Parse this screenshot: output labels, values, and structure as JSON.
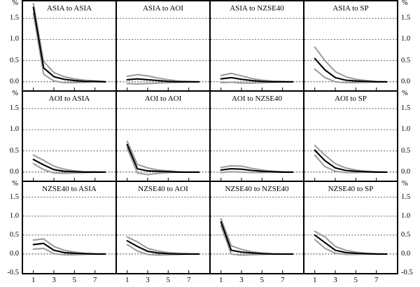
{
  "figure": {
    "unit_label": "%",
    "colors": {
      "response": "#000000",
      "band": "#9e9e9e",
      "grid": "#444444"
    }
  },
  "axis": {
    "x_ticks": [
      1,
      3,
      5,
      7
    ],
    "x_domain": [
      0,
      9
    ],
    "rows": [
      {
        "ylim": [
          -0.2,
          1.9
        ],
        "yticks": [
          0.0,
          0.5,
          1.0,
          1.5
        ]
      },
      {
        "ylim": [
          -0.2,
          1.9
        ],
        "yticks": [
          0.0,
          0.5,
          1.0,
          1.5
        ]
      },
      {
        "ylim": [
          -0.5,
          1.9
        ],
        "yticks": [
          -0.5,
          0.0,
          0.5,
          1.0,
          1.5
        ]
      }
    ]
  },
  "chart_data": [
    {
      "type": "line",
      "title": "ASIA to ASIA",
      "row": 0,
      "col": 0,
      "x": [
        1,
        2,
        3,
        4,
        5,
        6,
        7,
        8
      ],
      "series": [
        {
          "name": "upper_band",
          "values": [
            1.85,
            0.48,
            0.22,
            0.12,
            0.07,
            0.04,
            0.02,
            0.01
          ]
        },
        {
          "name": "response",
          "values": [
            1.76,
            0.33,
            0.12,
            0.06,
            0.03,
            0.01,
            0.01,
            0.0
          ]
        },
        {
          "name": "lower_band",
          "values": [
            1.62,
            0.18,
            0.02,
            -0.02,
            -0.02,
            -0.01,
            0.0,
            0.0
          ]
        }
      ]
    },
    {
      "type": "line",
      "title": "ASIA to AOI",
      "row": 0,
      "col": 1,
      "x": [
        1,
        2,
        3,
        4,
        5,
        6,
        7,
        8
      ],
      "series": [
        {
          "name": "upper_band",
          "values": [
            0.13,
            0.17,
            0.14,
            0.09,
            0.05,
            0.02,
            0.01,
            0.0
          ]
        },
        {
          "name": "response",
          "values": [
            0.05,
            0.07,
            0.05,
            0.03,
            0.01,
            0.0,
            0.0,
            0.0
          ]
        },
        {
          "name": "lower_band",
          "values": [
            -0.04,
            -0.05,
            -0.04,
            -0.03,
            -0.02,
            -0.01,
            0.0,
            0.0
          ]
        }
      ]
    },
    {
      "type": "line",
      "title": "ASIA to NZSE40",
      "row": 0,
      "col": 2,
      "x": [
        1,
        2,
        3,
        4,
        5,
        6,
        7,
        8
      ],
      "series": [
        {
          "name": "upper_band",
          "values": [
            0.15,
            0.2,
            0.14,
            0.08,
            0.04,
            0.02,
            0.01,
            0.0
          ]
        },
        {
          "name": "response",
          "values": [
            0.07,
            0.1,
            0.06,
            0.03,
            0.01,
            0.0,
            0.0,
            0.0
          ]
        },
        {
          "name": "lower_band",
          "values": [
            -0.02,
            -0.01,
            -0.03,
            -0.03,
            -0.02,
            -0.01,
            0.0,
            0.0
          ]
        }
      ]
    },
    {
      "type": "line",
      "title": "ASIA to SP",
      "row": 0,
      "col": 3,
      "x": [
        1,
        2,
        3,
        4,
        5,
        6,
        7,
        8
      ],
      "series": [
        {
          "name": "upper_band",
          "values": [
            0.82,
            0.5,
            0.24,
            0.12,
            0.06,
            0.03,
            0.01,
            0.0
          ]
        },
        {
          "name": "response",
          "values": [
            0.55,
            0.28,
            0.1,
            0.04,
            0.02,
            0.01,
            0.0,
            0.0
          ]
        },
        {
          "name": "lower_band",
          "values": [
            0.3,
            0.1,
            0.0,
            -0.02,
            -0.02,
            -0.01,
            0.0,
            0.0
          ]
        }
      ]
    },
    {
      "type": "line",
      "title": "AOI to ASIA",
      "row": 1,
      "col": 0,
      "x": [
        1,
        2,
        3,
        4,
        5,
        6,
        7,
        8
      ],
      "series": [
        {
          "name": "upper_band",
          "values": [
            0.4,
            0.28,
            0.14,
            0.07,
            0.03,
            0.01,
            0.01,
            0.0
          ]
        },
        {
          "name": "response",
          "values": [
            0.3,
            0.17,
            0.06,
            0.02,
            0.01,
            0.0,
            0.0,
            0.0
          ]
        },
        {
          "name": "lower_band",
          "values": [
            0.2,
            0.06,
            -0.02,
            -0.03,
            -0.02,
            -0.01,
            0.0,
            0.0
          ]
        }
      ]
    },
    {
      "type": "line",
      "title": "AOI to AOI",
      "row": 1,
      "col": 1,
      "x": [
        1,
        2,
        3,
        4,
        5,
        6,
        7,
        8
      ],
      "series": [
        {
          "name": "upper_band",
          "values": [
            0.73,
            0.18,
            0.1,
            0.05,
            0.03,
            0.01,
            0.0,
            0.0
          ]
        },
        {
          "name": "response",
          "values": [
            0.65,
            0.08,
            0.03,
            0.02,
            0.01,
            0.0,
            0.0,
            0.0
          ]
        },
        {
          "name": "lower_band",
          "values": [
            0.57,
            -0.02,
            -0.06,
            -0.03,
            -0.01,
            0.0,
            0.0,
            0.0
          ]
        }
      ]
    },
    {
      "type": "line",
      "title": "AOI to NZSE40",
      "row": 1,
      "col": 2,
      "x": [
        1,
        2,
        3,
        4,
        5,
        6,
        7,
        8
      ],
      "series": [
        {
          "name": "upper_band",
          "values": [
            0.11,
            0.15,
            0.14,
            0.09,
            0.05,
            0.02,
            0.01,
            0.0
          ]
        },
        {
          "name": "response",
          "values": [
            0.05,
            0.08,
            0.07,
            0.04,
            0.02,
            0.01,
            0.0,
            0.0
          ]
        },
        {
          "name": "lower_band",
          "values": [
            -0.01,
            0.01,
            0.0,
            -0.01,
            -0.01,
            0.0,
            0.0,
            0.0
          ]
        }
      ]
    },
    {
      "type": "line",
      "title": "AOI to SP",
      "row": 1,
      "col": 3,
      "x": [
        1,
        2,
        3,
        4,
        5,
        6,
        7,
        8
      ],
      "series": [
        {
          "name": "upper_band",
          "values": [
            0.63,
            0.4,
            0.2,
            0.1,
            0.05,
            0.02,
            0.01,
            0.0
          ]
        },
        {
          "name": "response",
          "values": [
            0.52,
            0.27,
            0.1,
            0.04,
            0.02,
            0.01,
            0.0,
            0.0
          ]
        },
        {
          "name": "lower_band",
          "values": [
            0.4,
            0.13,
            0.02,
            -0.01,
            -0.01,
            0.0,
            0.0,
            0.0
          ]
        }
      ]
    },
    {
      "type": "line",
      "title": "NZSE40 to ASIA",
      "row": 2,
      "col": 0,
      "x": [
        1,
        2,
        3,
        4,
        5,
        6,
        7,
        8
      ],
      "series": [
        {
          "name": "upper_band",
          "values": [
            0.37,
            0.4,
            0.2,
            0.1,
            0.05,
            0.02,
            0.01,
            0.0
          ]
        },
        {
          "name": "response",
          "values": [
            0.25,
            0.28,
            0.1,
            0.04,
            0.02,
            0.01,
            0.0,
            0.0
          ]
        },
        {
          "name": "lower_band",
          "values": [
            0.13,
            0.15,
            0.01,
            -0.02,
            -0.02,
            -0.01,
            0.0,
            0.0
          ]
        }
      ]
    },
    {
      "type": "line",
      "title": "NZSE40 to AOI",
      "row": 2,
      "col": 1,
      "x": [
        1,
        2,
        3,
        4,
        5,
        6,
        7,
        8
      ],
      "series": [
        {
          "name": "upper_band",
          "values": [
            0.45,
            0.32,
            0.15,
            0.08,
            0.04,
            0.02,
            0.01,
            0.0
          ]
        },
        {
          "name": "response",
          "values": [
            0.35,
            0.2,
            0.07,
            0.03,
            0.01,
            0.0,
            0.0,
            0.0
          ]
        },
        {
          "name": "lower_band",
          "values": [
            0.25,
            0.08,
            -0.01,
            -0.03,
            -0.02,
            -0.01,
            0.0,
            0.0
          ]
        }
      ]
    },
    {
      "type": "line",
      "title": "NZSE40 to NZSE40",
      "row": 2,
      "col": 2,
      "x": [
        1,
        2,
        3,
        4,
        5,
        6,
        7,
        8
      ],
      "series": [
        {
          "name": "upper_band",
          "values": [
            0.93,
            0.22,
            0.12,
            0.06,
            0.03,
            0.01,
            0.0,
            0.0
          ]
        },
        {
          "name": "response",
          "values": [
            0.85,
            0.1,
            0.05,
            0.03,
            0.01,
            0.0,
            0.0,
            0.0
          ]
        },
        {
          "name": "lower_band",
          "values": [
            0.75,
            0.0,
            -0.03,
            -0.02,
            -0.01,
            0.0,
            0.0,
            0.0
          ]
        }
      ]
    },
    {
      "type": "line",
      "title": "NZSE40 to SP",
      "row": 2,
      "col": 3,
      "x": [
        1,
        2,
        3,
        4,
        5,
        6,
        7,
        8
      ],
      "series": [
        {
          "name": "upper_band",
          "values": [
            0.6,
            0.45,
            0.2,
            0.1,
            0.05,
            0.02,
            0.01,
            0.0
          ]
        },
        {
          "name": "response",
          "values": [
            0.5,
            0.3,
            0.1,
            0.04,
            0.02,
            0.01,
            0.0,
            0.0
          ]
        },
        {
          "name": "lower_band",
          "values": [
            0.38,
            0.15,
            0.02,
            -0.01,
            -0.01,
            0.0,
            0.0,
            0.0
          ]
        }
      ]
    }
  ]
}
